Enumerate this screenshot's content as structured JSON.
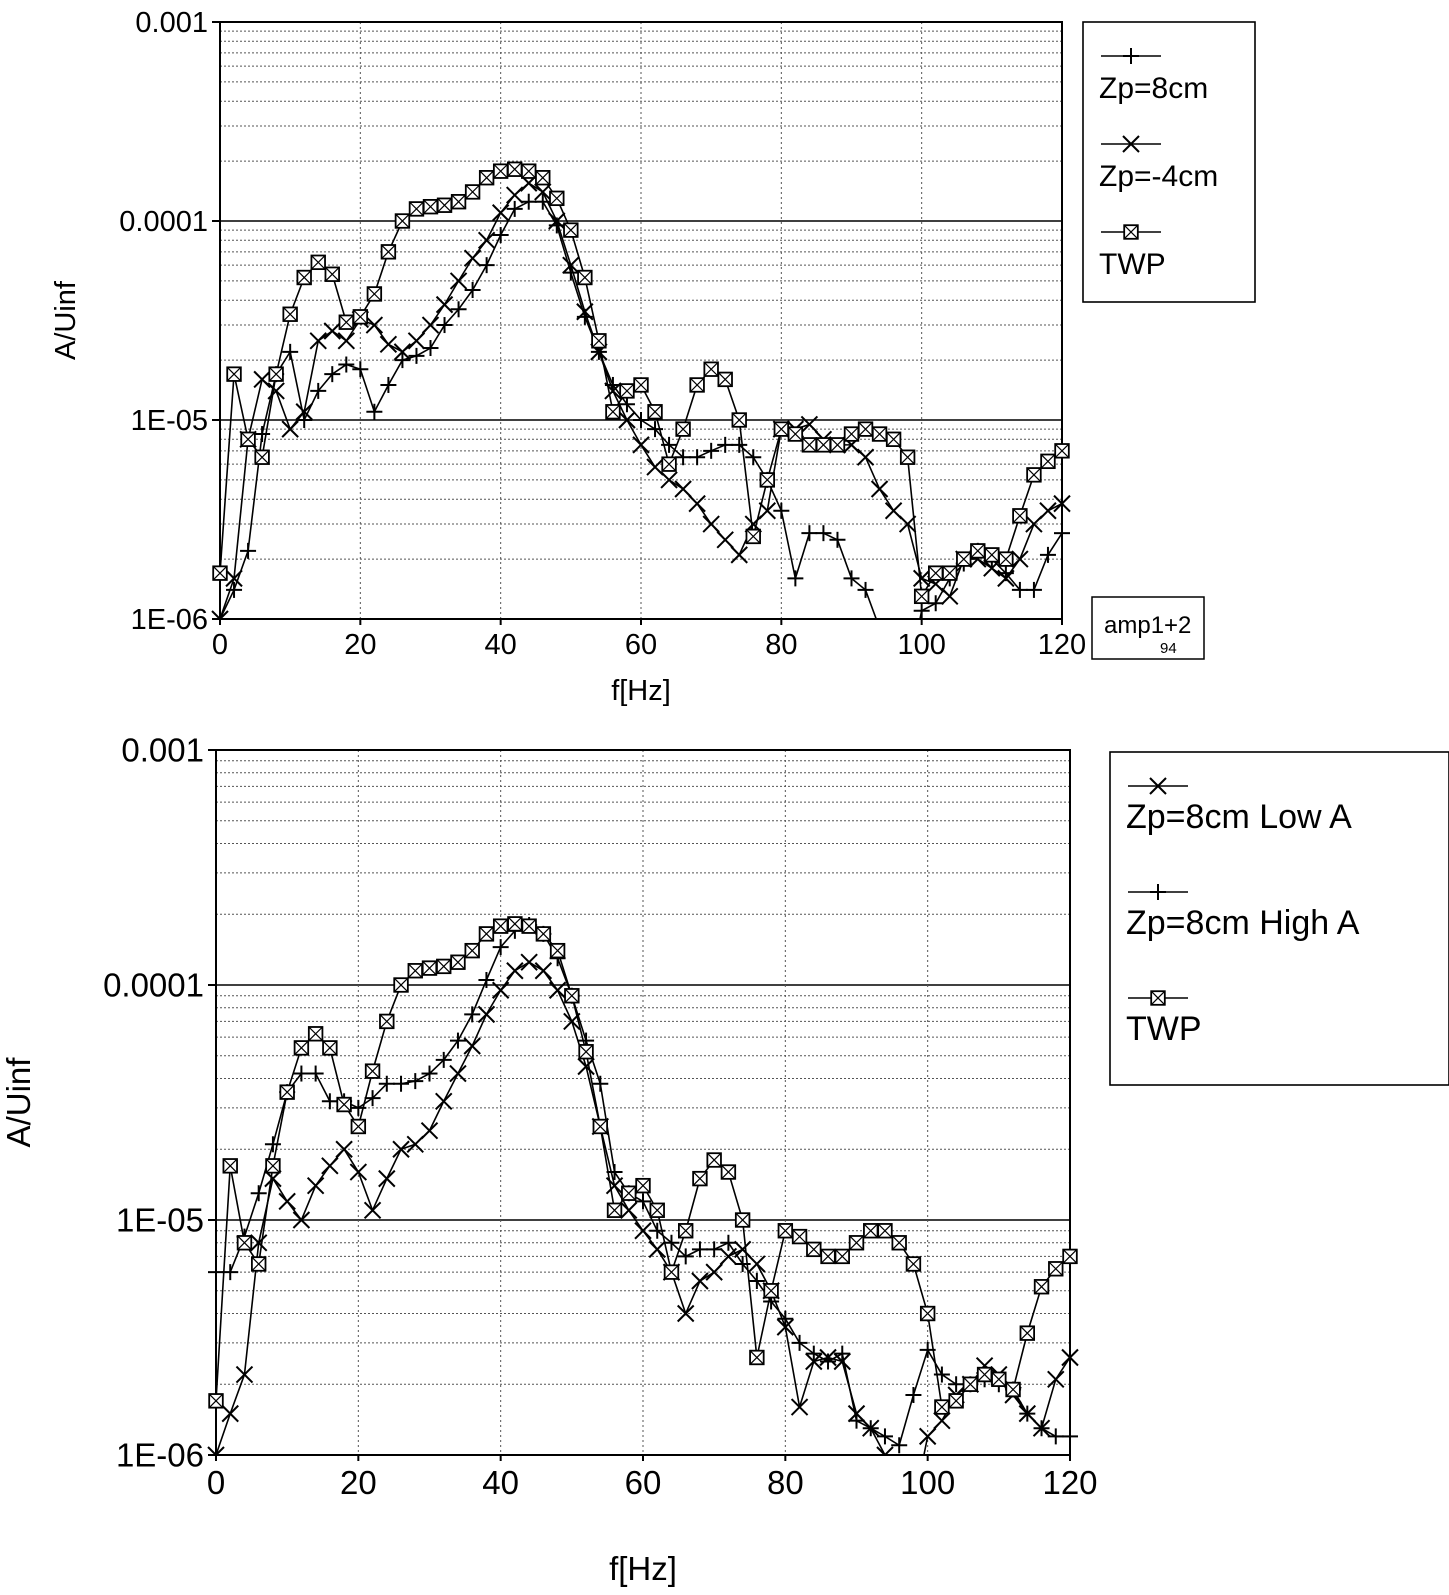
{
  "chart_data": [
    {
      "type": "line",
      "xlabel": "f[Hz]",
      "ylabel": "A/Uinf",
      "xlim": [
        0,
        120
      ],
      "ylim": [
        1e-06,
        0.001
      ],
      "yscale": "log",
      "xticks": [
        0,
        20,
        40,
        60,
        80,
        100,
        120
      ],
      "xtick_labels": [
        "0",
        "20",
        "40",
        "60",
        "80",
        "100",
        "120"
      ],
      "yticks": [
        1e-06,
        1e-05,
        0.0001,
        0.001
      ],
      "ytick_labels": [
        "1E-06",
        "1E-05",
        "0.0001",
        "0.001"
      ],
      "grid": true,
      "legend_position": "right",
      "annotation": "amp1+2 94",
      "series": [
        {
          "name": "Zp=8cm",
          "marker": "plus",
          "x": [
            0,
            2,
            4,
            6,
            8,
            10,
            12,
            14,
            16,
            18,
            20,
            22,
            24,
            26,
            28,
            30,
            32,
            34,
            36,
            38,
            40,
            42,
            44,
            46,
            48,
            50,
            52,
            54,
            56,
            58,
            60,
            62,
            64,
            66,
            68,
            70,
            72,
            74,
            76,
            78,
            80,
            82,
            84,
            86,
            88,
            90,
            92,
            94,
            96,
            98,
            100,
            102,
            104,
            106,
            108,
            110,
            112,
            114,
            116,
            118,
            120
          ],
          "y": [
            1e-06,
            1.4e-06,
            2.2e-06,
            8.5e-06,
            1.7e-05,
            2.2e-05,
            1e-05,
            1.4e-05,
            1.7e-05,
            1.9e-05,
            1.8e-05,
            1.1e-05,
            1.5e-05,
            2e-05,
            2.1e-05,
            2.3e-05,
            3e-05,
            3.6e-05,
            4.5e-05,
            6e-05,
            8.5e-05,
            0.000115,
            0.000125,
            0.000125,
            9.5e-05,
            5.5e-05,
            3.3e-05,
            2.2e-05,
            1.5e-05,
            1.2e-05,
            1e-05,
            9e-06,
            7.5e-06,
            6.5e-06,
            6.5e-06,
            7e-06,
            7.5e-06,
            7.5e-06,
            6.5e-06,
            5e-06,
            3.5e-06,
            1.6e-06,
            2.7e-06,
            2.7e-06,
            2.5e-06,
            1.6e-06,
            1.4e-06,
            9e-07,
            5e-07,
            5e-07,
            1.1e-06,
            1.2e-06,
            1.6e-06,
            1.9e-06,
            2.2e-06,
            2e-06,
            1.7e-06,
            1.4e-06,
            1.4e-06,
            2.1e-06,
            2.7e-06
          ]
        },
        {
          "name": "Zp=-4cm",
          "marker": "x",
          "x": [
            0,
            2,
            4,
            6,
            8,
            10,
            12,
            14,
            16,
            18,
            20,
            22,
            24,
            26,
            28,
            30,
            32,
            34,
            36,
            38,
            40,
            42,
            44,
            46,
            48,
            50,
            52,
            54,
            56,
            58,
            60,
            62,
            64,
            66,
            68,
            70,
            72,
            74,
            76,
            78,
            80,
            82,
            84,
            86,
            88,
            90,
            92,
            94,
            96,
            98,
            100,
            102,
            104,
            106,
            108,
            110,
            112,
            114,
            116,
            118,
            120
          ],
          "y": [
            1e-06,
            1.6e-06,
            8e-06,
            1.6e-05,
            1.4e-05,
            9e-06,
            1.1e-05,
            2.5e-05,
            2.8e-05,
            2.5e-05,
            3.2e-05,
            3e-05,
            2.4e-05,
            2.2e-05,
            2.5e-05,
            3e-05,
            3.8e-05,
            5e-05,
            6.5e-05,
            8e-05,
            0.00011,
            0.000135,
            0.000155,
            0.00014,
            0.0001,
            6e-05,
            3.5e-05,
            2.2e-05,
            1.4e-05,
            1e-05,
            7.5e-06,
            5.8e-06,
            5e-06,
            4.5e-06,
            3.8e-06,
            3e-06,
            2.5e-06,
            2.1e-06,
            3e-06,
            3.5e-06,
            9e-06,
            9e-06,
            9.5e-06,
            8e-06,
            7.5e-06,
            7.5e-06,
            6.5e-06,
            4.5e-06,
            3.5e-06,
            3e-06,
            1.6e-06,
            1.5e-06,
            1.3e-06,
            2e-06,
            2e-06,
            1.8e-06,
            1.6e-06,
            2e-06,
            3e-06,
            3.5e-06,
            3.8e-06
          ]
        },
        {
          "name": "TWP",
          "marker": "boxed-x",
          "x": [
            0,
            2,
            4,
            6,
            8,
            10,
            12,
            14,
            16,
            18,
            20,
            22,
            24,
            26,
            28,
            30,
            32,
            34,
            36,
            38,
            40,
            42,
            44,
            46,
            48,
            50,
            52,
            54,
            56,
            58,
            60,
            62,
            64,
            66,
            68,
            70,
            72,
            74,
            76,
            78,
            80,
            82,
            84,
            86,
            88,
            90,
            92,
            94,
            96,
            98,
            100,
            102,
            104,
            106,
            108,
            110,
            112,
            114,
            116,
            118,
            120
          ],
          "y": [
            1.7e-06,
            1.7e-05,
            8e-06,
            6.5e-06,
            1.7e-05,
            3.4e-05,
            5.2e-05,
            6.2e-05,
            5.4e-05,
            3.1e-05,
            3.3e-05,
            4.3e-05,
            7e-05,
            0.0001,
            0.000115,
            0.000118,
            0.00012,
            0.000125,
            0.00014,
            0.000165,
            0.000178,
            0.000182,
            0.000178,
            0.000165,
            0.00013,
            9e-05,
            5.2e-05,
            2.5e-05,
            1.1e-05,
            1.4e-05,
            1.5e-05,
            1.1e-05,
            6e-06,
            9e-06,
            1.5e-05,
            1.8e-05,
            1.6e-05,
            1e-05,
            2.6e-06,
            5e-06,
            9e-06,
            8.5e-06,
            7.5e-06,
            7.5e-06,
            7.5e-06,
            8.5e-06,
            9e-06,
            8.5e-06,
            8e-06,
            6.5e-06,
            1.3e-06,
            1.7e-06,
            1.7e-06,
            2e-06,
            2.2e-06,
            2.1e-06,
            2e-06,
            3.3e-06,
            5.3e-06,
            6.2e-06,
            7e-06
          ]
        }
      ]
    },
    {
      "type": "line",
      "xlabel": "f[Hz]",
      "ylabel": "A/Uinf",
      "xlim": [
        0,
        120
      ],
      "ylim": [
        1e-06,
        0.001
      ],
      "yscale": "log",
      "xticks": [
        0,
        20,
        40,
        60,
        80,
        100,
        120
      ],
      "xtick_labels": [
        "0",
        "20",
        "40",
        "60",
        "80",
        "100",
        "120"
      ],
      "yticks": [
        1e-06,
        1e-05,
        0.0001,
        0.001
      ],
      "ytick_labels": [
        "1E-06",
        "1E-05",
        "0.0001",
        "0.001"
      ],
      "grid": true,
      "legend_position": "right",
      "series": [
        {
          "name": "Zp=8cm Low A",
          "marker": "x",
          "x": [
            0,
            2,
            4,
            6,
            8,
            10,
            12,
            14,
            16,
            18,
            20,
            22,
            24,
            26,
            28,
            30,
            32,
            34,
            36,
            38,
            40,
            42,
            44,
            46,
            48,
            50,
            52,
            54,
            56,
            58,
            60,
            62,
            64,
            66,
            68,
            70,
            72,
            74,
            76,
            78,
            80,
            82,
            84,
            86,
            88,
            90,
            92,
            94,
            96,
            98,
            100,
            102,
            104,
            106,
            108,
            110,
            112,
            114,
            116,
            118,
            120
          ],
          "y": [
            1e-06,
            1.5e-06,
            2.2e-06,
            8e-06,
            1.5e-05,
            1.2e-05,
            1e-05,
            1.4e-05,
            1.7e-05,
            2e-05,
            1.6e-05,
            1.1e-05,
            1.5e-05,
            2e-05,
            2.1e-05,
            2.4e-05,
            3.2e-05,
            4.2e-05,
            5.5e-05,
            7.5e-05,
            9.5e-05,
            0.000115,
            0.000125,
            0.000115,
            9.5e-05,
            7e-05,
            4.5e-05,
            2.5e-05,
            1.4e-05,
            1.1e-05,
            9e-06,
            7.5e-06,
            6e-06,
            4e-06,
            5.5e-06,
            6e-06,
            7e-06,
            7.5e-06,
            6.5e-06,
            5e-06,
            3.5e-06,
            1.6e-06,
            2.5e-06,
            2.6e-06,
            2.5e-06,
            1.5e-06,
            1.3e-06,
            1e-06,
            7e-07,
            6e-07,
            1.2e-06,
            1.4e-06,
            1.8e-06,
            2e-06,
            2.4e-06,
            2.2e-06,
            1.8e-06,
            1.5e-06,
            1.3e-06,
            2.1e-06,
            2.6e-06
          ]
        },
        {
          "name": "Zp=8cm High A",
          "marker": "plus",
          "x": [
            0,
            2,
            4,
            6,
            8,
            10,
            12,
            14,
            16,
            18,
            20,
            22,
            24,
            26,
            28,
            30,
            32,
            34,
            36,
            38,
            40,
            42,
            44,
            46,
            48,
            50,
            52,
            54,
            56,
            58,
            60,
            62,
            64,
            66,
            68,
            70,
            72,
            74,
            76,
            78,
            80,
            82,
            84,
            86,
            88,
            90,
            92,
            94,
            96,
            98,
            100,
            102,
            104,
            106,
            108,
            110,
            112,
            114,
            116,
            118,
            120
          ],
          "y": [
            6e-06,
            6e-06,
            8.5e-06,
            1.3e-05,
            2.1e-05,
            3.5e-05,
            4.2e-05,
            4.2e-05,
            3.2e-05,
            3.2e-05,
            3e-05,
            3.3e-05,
            3.8e-05,
            3.8e-05,
            3.9e-05,
            4.2e-05,
            4.8e-05,
            5.8e-05,
            7.5e-05,
            0.000105,
            0.000145,
            0.00017,
            0.00018,
            0.000165,
            0.00013,
            9e-05,
            5.8e-05,
            3.8e-05,
            1.6e-05,
            1.3e-05,
            1.2e-05,
            9e-06,
            8e-06,
            7e-06,
            7.5e-06,
            7.5e-06,
            8e-06,
            6.5e-06,
            5.5e-06,
            4.5e-06,
            3.8e-06,
            3e-06,
            2.7e-06,
            2.5e-06,
            2.7e-06,
            1.4e-06,
            1.3e-06,
            1.2e-06,
            1.1e-06,
            1.8e-06,
            2.8e-06,
            2.2e-06,
            2e-06,
            2e-06,
            2.1e-06,
            2e-06,
            1.9e-06,
            1.5e-06,
            1.3e-06,
            1.2e-06,
            1.2e-06
          ]
        },
        {
          "name": "TWP",
          "marker": "boxed-x",
          "x": [
            0,
            2,
            4,
            6,
            8,
            10,
            12,
            14,
            16,
            18,
            20,
            22,
            24,
            26,
            28,
            30,
            32,
            34,
            36,
            38,
            40,
            42,
            44,
            46,
            48,
            50,
            52,
            54,
            56,
            58,
            60,
            62,
            64,
            66,
            68,
            70,
            72,
            74,
            76,
            78,
            80,
            82,
            84,
            86,
            88,
            90,
            92,
            94,
            96,
            98,
            100,
            102,
            104,
            106,
            108,
            110,
            112,
            114,
            116,
            118,
            120
          ],
          "y": [
            1.7e-06,
            1.7e-05,
            8e-06,
            6.5e-06,
            1.7e-05,
            3.5e-05,
            5.4e-05,
            6.2e-05,
            5.4e-05,
            3.1e-05,
            2.5e-05,
            4.3e-05,
            7e-05,
            0.0001,
            0.000115,
            0.000118,
            0.00012,
            0.000125,
            0.00014,
            0.000165,
            0.000178,
            0.000182,
            0.000178,
            0.000165,
            0.00014,
            9e-05,
            5.2e-05,
            2.5e-05,
            1.1e-05,
            1.3e-05,
            1.4e-05,
            1.1e-05,
            6e-06,
            9e-06,
            1.5e-05,
            1.8e-05,
            1.6e-05,
            1e-05,
            2.6e-06,
            5e-06,
            9e-06,
            8.5e-06,
            7.5e-06,
            7e-06,
            7e-06,
            8e-06,
            9e-06,
            9e-06,
            8e-06,
            6.5e-06,
            4e-06,
            1.6e-06,
            1.7e-06,
            2e-06,
            2.2e-06,
            2.1e-06,
            1.9e-06,
            3.3e-06,
            5.2e-06,
            6.2e-06,
            7e-06
          ]
        }
      ]
    }
  ]
}
